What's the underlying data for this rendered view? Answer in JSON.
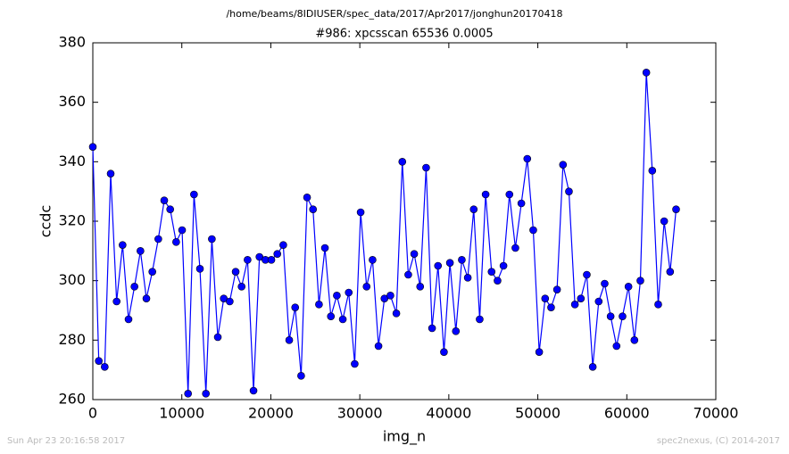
{
  "chart_data": {
    "type": "line",
    "suptitle": "/home/beams/8IDIUSER/spec_data/2017/Apr2017/jonghun20170418",
    "title": "#986: xpcsscan 65536 0.0005",
    "xlabel": "img_n",
    "ylabel": "ccdc",
    "footer_left": "Sun Apr 23 20:16:58 2017",
    "footer_right": "spec2nexus, (C) 2014-2017",
    "x": [
      0,
      669,
      1337,
      2006,
      2675,
      3344,
      4012,
      4681,
      5350,
      6019,
      6687,
      7356,
      8025,
      8693,
      9362,
      10031,
      10700,
      11368,
      12037,
      12706,
      13375,
      14043,
      14712,
      15381,
      16050,
      16718,
      17387,
      18056,
      18724,
      19393,
      20062,
      20731,
      21399,
      22068,
      22737,
      23406,
      24074,
      24743,
      25412,
      26080,
      26749,
      27418,
      28087,
      28755,
      29424,
      30093,
      30762,
      31430,
      32099,
      32768,
      33437,
      34105,
      34774,
      35443,
      36111,
      36780,
      37449,
      38118,
      38786,
      39455,
      40124,
      40793,
      41461,
      42130,
      42799,
      43467,
      44136,
      44805,
      45474,
      46142,
      46811,
      47480,
      48149,
      48817,
      49486,
      50155,
      50824,
      51492,
      52161,
      52830,
      53498,
      54167,
      54836,
      55505,
      56173,
      56842,
      57511,
      58180,
      58848,
      59517,
      60186,
      60855,
      61523,
      62192,
      62861,
      63529,
      64198,
      64867,
      65536
    ],
    "series": [
      {
        "name": "ccdc",
        "color": "#0000ff",
        "values": [
          345,
          273,
          271,
          336,
          293,
          312,
          287,
          298,
          310,
          294,
          303,
          314,
          327,
          324,
          313,
          317,
          262,
          329,
          304,
          262,
          314,
          281,
          294,
          293,
          303,
          298,
          307,
          263,
          308,
          307,
          307,
          309,
          312,
          280,
          291,
          268,
          328,
          324,
          292,
          311,
          288,
          295,
          287,
          296,
          272,
          323,
          298,
          307,
          278,
          294,
          295,
          289,
          340,
          302,
          309,
          298,
          338,
          284,
          305,
          276,
          306,
          283,
          307,
          301,
          324,
          287,
          329,
          303,
          300,
          305,
          329,
          311,
          326,
          341,
          317,
          276,
          294,
          291,
          297,
          339,
          330,
          292,
          294,
          302,
          271,
          293,
          299,
          288,
          278,
          288,
          298,
          280,
          300,
          370,
          337,
          292,
          320,
          303,
          324
        ]
      }
    ],
    "xlim": [
      0,
      70000
    ],
    "ylim": [
      260,
      380
    ],
    "xticks": [
      0,
      10000,
      20000,
      30000,
      40000,
      50000,
      60000,
      70000
    ],
    "yticks": [
      260,
      280,
      300,
      320,
      340,
      360,
      380
    ],
    "grid": false
  }
}
